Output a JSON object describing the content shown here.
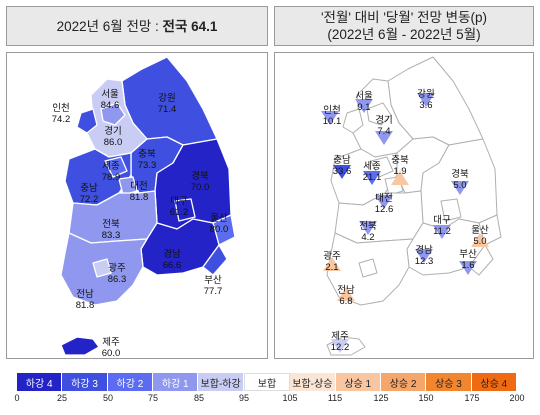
{
  "left_title": {
    "prefix": "2022년 6월 전망 : ",
    "value": "전국 64.1"
  },
  "right_title": {
    "line1": "'전월' 대비 '당월' 전망 변동(p)",
    "line2": "(2022년 6월 - 2022년 5월)"
  },
  "colors": {
    "down4": "#2323c8",
    "down3": "#3f4fe0",
    "down2": "#5b6cf0",
    "down1": "#8f98ee",
    "flat_down": "#c9cdf4",
    "flat": "#ffffff",
    "flat_up": "#fbe6d6",
    "up1": "#f8c6a0",
    "up2": "#f5a66a",
    "up3": "#f2862f",
    "up4": "#ef6a10"
  },
  "left_map": {
    "regions": [
      {
        "name": "서울",
        "value": "84.6"
      },
      {
        "name": "인천",
        "value": "74.2"
      },
      {
        "name": "경기",
        "value": "86.0"
      },
      {
        "name": "강원",
        "value": "71.4"
      },
      {
        "name": "세종",
        "value": "78.9"
      },
      {
        "name": "충북",
        "value": "73.3"
      },
      {
        "name": "충남",
        "value": "72.2"
      },
      {
        "name": "대전",
        "value": "81.8"
      },
      {
        "name": "경북",
        "value": "70.0"
      },
      {
        "name": "대구",
        "value": "61.2"
      },
      {
        "name": "울산",
        "value": "80.0"
      },
      {
        "name": "전북",
        "value": "83.3"
      },
      {
        "name": "광주",
        "value": "86.3"
      },
      {
        "name": "경남",
        "value": "66.6"
      },
      {
        "name": "부산",
        "value": "77.7"
      },
      {
        "name": "전남",
        "value": "81.8"
      },
      {
        "name": "제주",
        "value": "60.0"
      }
    ]
  },
  "right_map": {
    "regions": [
      {
        "name": "서울",
        "value": "9.1"
      },
      {
        "name": "인천",
        "value": "10.1"
      },
      {
        "name": "경기",
        "value": "7.4"
      },
      {
        "name": "강원",
        "value": "3.6"
      },
      {
        "name": "세종",
        "value": "21.1"
      },
      {
        "name": "충북",
        "value": "1.9"
      },
      {
        "name": "충남",
        "value": "33.6"
      },
      {
        "name": "대전",
        "value": "12.6"
      },
      {
        "name": "경북",
        "value": "5.0"
      },
      {
        "name": "대구",
        "value": "11.2"
      },
      {
        "name": "울산",
        "value": "5.0"
      },
      {
        "name": "전북",
        "value": "4.2"
      },
      {
        "name": "광주",
        "value": "2.1"
      },
      {
        "name": "경남",
        "value": "12.3"
      },
      {
        "name": "부산",
        "value": "1.6"
      },
      {
        "name": "전남",
        "value": "6.8"
      },
      {
        "name": "제주",
        "value": "12.2"
      }
    ]
  },
  "legend": {
    "items": [
      "하강 4",
      "하강 3",
      "하강 2",
      "하강 1",
      "보합-하강",
      "보합",
      "보합-상승",
      "상승 1",
      "상승 2",
      "상승 3",
      "상승 4"
    ],
    "ticks": [
      "0",
      "25",
      "50",
      "75",
      "85",
      "95",
      "105",
      "115",
      "125",
      "150",
      "175",
      "200"
    ]
  }
}
